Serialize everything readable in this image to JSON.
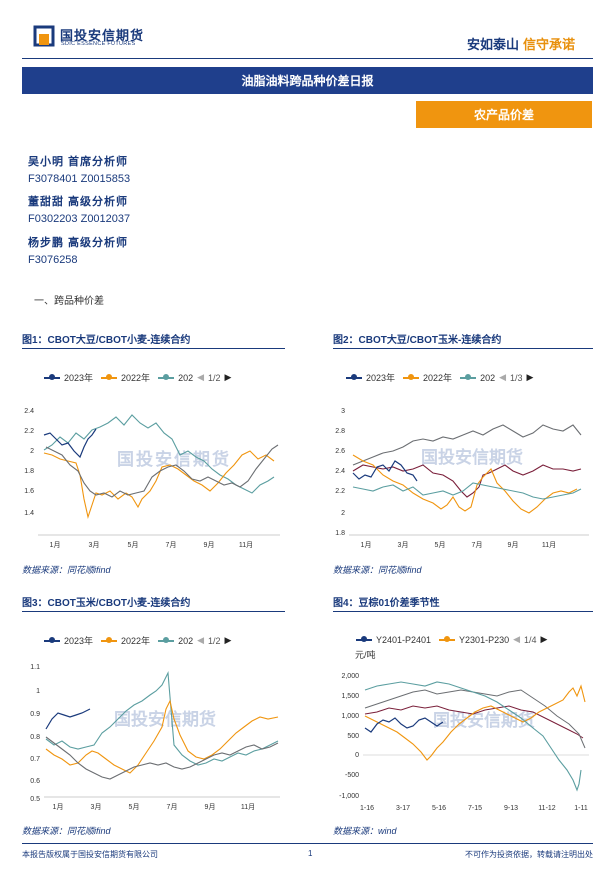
{
  "header": {
    "company_cn": "国投安信期货",
    "company_en": "SDIC ESSENCE FUTURES",
    "slogan_a": "安如泰山",
    "slogan_b": "信守承诺",
    "report_title": "油脂油料跨品种价差日报",
    "category": "农产品价差"
  },
  "analysts": [
    {
      "name": "吴小明 首席分析师",
      "codes": "F3078401 Z0015853"
    },
    {
      "name": "董甜甜 高级分析师",
      "codes": "F0302203 Z0012037"
    },
    {
      "name": "杨步鹏 高级分析师",
      "codes": "F3076258"
    }
  ],
  "section_title": "一、跨品种价差",
  "watermark": "国投安信期货",
  "colors": {
    "navy": "#1a3a7c",
    "orange": "#f0950f",
    "teal": "#5b9ea0",
    "gray": "#6b6e72",
    "maroon": "#7a1f3a"
  },
  "figures": [
    {
      "title": "图1：CBOT大豆/CBOT小麦-连续合约",
      "legend": [
        "2023年",
        "2022年",
        "202"
      ],
      "page": "1/2",
      "yticks": [
        "2.4",
        "2.2",
        "2",
        "1.8",
        "1.6",
        "1.4"
      ],
      "xticks": [
        "1月",
        "3月",
        "5月",
        "7月",
        "9月",
        "11月"
      ],
      "source": "数据来源：同花顺ifind"
    },
    {
      "title": "图2：CBOT大豆/CBOT玉米-连续合约",
      "legend": [
        "2023年",
        "2022年",
        "202"
      ],
      "page": "1/3",
      "yticks": [
        "3",
        "2.8",
        "2.6",
        "2.4",
        "2.2",
        "2",
        "1.8"
      ],
      "xticks": [
        "1月",
        "3月",
        "5月",
        "7月",
        "9月",
        "11月"
      ],
      "source": "数据来源：同花顺ifind"
    },
    {
      "title": "图3：CBOT玉米/CBOT小麦-连续合约",
      "legend": [
        "2023年",
        "2022年",
        "202"
      ],
      "page": "1/2",
      "yticks": [
        "1.1",
        "1",
        "0.9",
        "0.8",
        "0.7",
        "0.6",
        "0.5"
      ],
      "xticks": [
        "1月",
        "3月",
        "5月",
        "7月",
        "9月",
        "11月"
      ],
      "source": "数据来源：同花顺ifind"
    },
    {
      "title": "图4：豆棕01价差季节性",
      "legend": [
        "Y2401-P2401",
        "Y2301-P230"
      ],
      "page": "1/4",
      "unit": "元/吨",
      "yticks": [
        "2,000",
        "1,500",
        "1,000",
        "500",
        "0",
        "-500",
        "-1,000"
      ],
      "xticks": [
        "1-16",
        "3-17",
        "5-16",
        "7-15",
        "9-13",
        "11-12",
        "1-11"
      ],
      "source": "数据来源：wind"
    }
  ],
  "footer": {
    "copyright": "本报告版权属于国投安信期货有限公司",
    "page": "1",
    "disclaimer": "不可作为投资依据，转载请注明出处"
  }
}
